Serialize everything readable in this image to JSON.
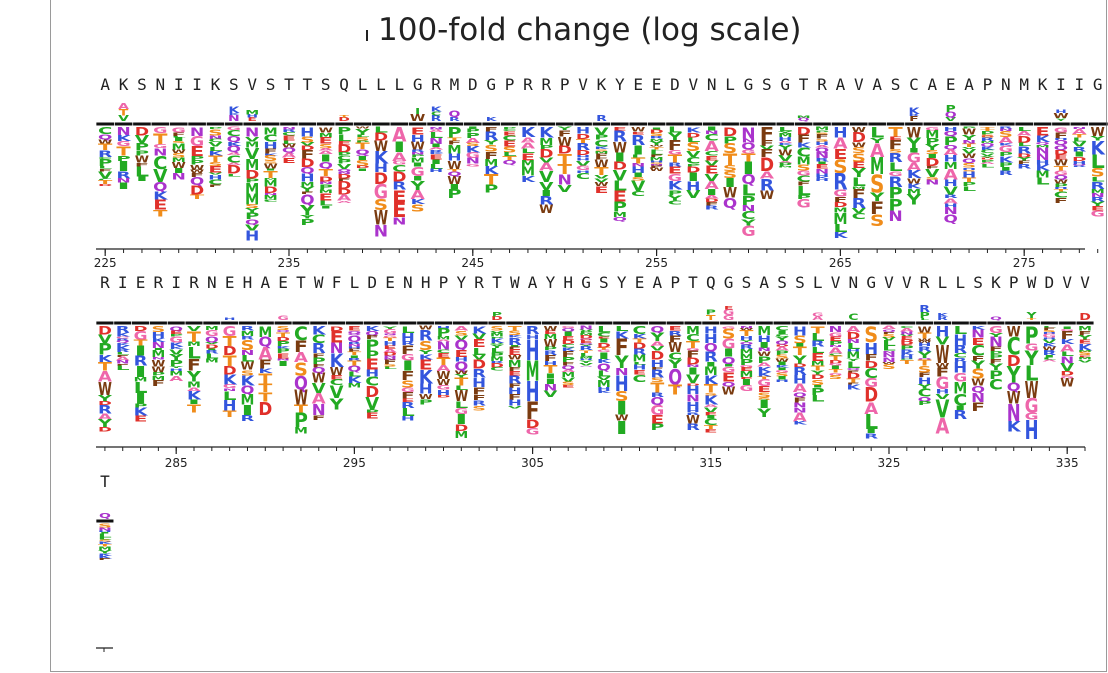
{
  "figure": {
    "title": "100-fold change (log scale)"
  },
  "colors": {
    "hydrophobic": "#1a1a1a",
    "positive": "#3355dd",
    "negative": "#e0302a",
    "polar": "#22aa22",
    "aromatic": "#7a3b10",
    "small": "#ee66aa",
    "amide": "#aa33cc",
    "ST": "#f08c1a",
    "wt_bar": "#111111"
  },
  "chart_data": [
    {
      "type": "logo",
      "title": "100-fold change (log scale)",
      "wildtype_sequence": "AKSNIIKSVSTTSQLLLGRMDGPRRPVKYEEDVNLGSGTRAVASCAEAPNMKIIGR",
      "x_start": 225,
      "x_ticks": [
        225,
        235,
        245,
        255,
        265,
        275
      ],
      "tick_labels": [
        "225",
        "235",
        "245",
        "255",
        "265",
        "275"
      ]
    },
    {
      "type": "logo",
      "wildtype_sequence": "RIERIRNEHAETWFLDENHPYRTWAYHGSYEAPTQGSASSLVNGVVRLLSKPWDVV",
      "x_start": 281,
      "x_ticks": [
        285,
        295,
        305,
        315,
        325,
        335
      ],
      "tick_labels": [
        "285",
        "295",
        "305",
        "315",
        "325",
        "335"
      ]
    },
    {
      "type": "logo",
      "wildtype_sequence": "T",
      "x_start": 337,
      "x_ticks": [],
      "tick_labels": []
    }
  ]
}
